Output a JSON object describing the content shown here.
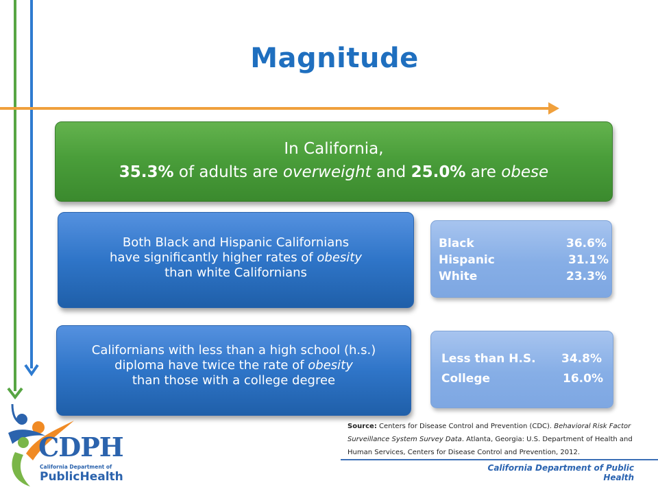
{
  "title": "Magnitude",
  "headline": {
    "line1": "In California,",
    "stat_overweight": "35.3%",
    "text_a": " of adults are ",
    "term_overweight": "overweight",
    "text_b": " and ",
    "stat_obese": "25.0%",
    "text_c": " are ",
    "term_obese": "obese"
  },
  "race_box": {
    "line1": "Both Black and Hispanic Californians",
    "line2a": "have significantly higher rates of ",
    "line2_em": "obesity",
    "line3": "than white Californians"
  },
  "race_stats": [
    {
      "label": "Black",
      "value": "36.6%"
    },
    {
      "label": "Hispanic",
      "value": "31.1%"
    },
    {
      "label": "White",
      "value": "23.3%"
    }
  ],
  "edu_box": {
    "line1": "Californians with less than a high school (h.s.)",
    "line2a": "diploma have twice the rate of ",
    "line2_em": "obesity",
    "line3": "than those with a college degree"
  },
  "edu_stats": [
    {
      "label": "Less than H.S.",
      "value": "34.8%"
    },
    {
      "label": "College",
      "value": "16.0%"
    }
  ],
  "source": {
    "prefix": "Source:",
    "text1": " Centers for Disease Control and Prevention (CDC). ",
    "italic": "Behavioral Risk Factor Surveillance System Survey Data",
    "text2": ". Atlanta, Georgia: U.S. Department of Health and Human Services, Centers for Disease Control and Prevention, 2012."
  },
  "footer": "California Department  of Public Health",
  "logo": {
    "big": "CDPH",
    "sub1": "California Department of",
    "sub2a": "Public",
    "sub2b": "Health"
  },
  "colors": {
    "title": "#1f6fbf",
    "green": "#4a9e3a",
    "blue": "#2f75c8",
    "light_blue": "#86aee6",
    "orange_arrow": "#f0a03c",
    "green_arrow": "#57a543",
    "blue_arrow": "#2e7bd0"
  }
}
